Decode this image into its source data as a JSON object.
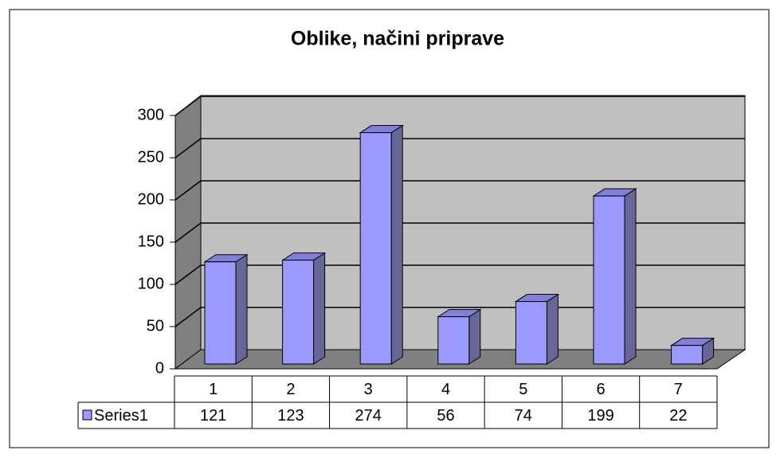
{
  "chart_data": {
    "type": "bar",
    "title": "Oblike, načini priprave",
    "categories": [
      "1",
      "2",
      "3",
      "4",
      "5",
      "6",
      "7"
    ],
    "series": [
      {
        "name": "Series1",
        "color": "#9999ff",
        "values": [
          121,
          123,
          274,
          56,
          74,
          199,
          22
        ]
      }
    ],
    "ylim": [
      0,
      300
    ],
    "yticks": [
      0,
      50,
      100,
      150,
      200,
      250,
      300
    ],
    "grid": true
  }
}
